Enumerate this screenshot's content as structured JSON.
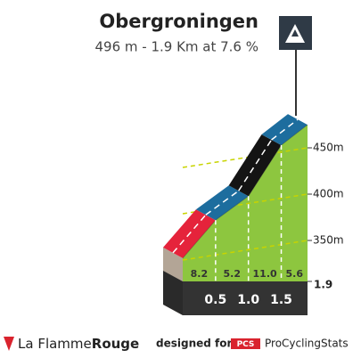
{
  "chart_data": {
    "type": "profile",
    "title": "Obergroningen",
    "subtitle": "496 m - 1.9 Km at 7.6 %",
    "xlim": [
      0,
      1.9
    ],
    "xticks": [
      0.5,
      {
        "value": 1,
        "label": "1.0"
      },
      1.5,
      1.9
    ],
    "ylim": [
      350,
      500
    ],
    "yticks": [
      {
        "value": 350,
        "label": "350m"
      },
      {
        "value": 400,
        "label": "400m"
      },
      {
        "value": 450,
        "label": "450m"
      }
    ],
    "profile": {
      "x": [
        0,
        0.5,
        1,
        1.5,
        1.9
      ],
      "values": [
        352,
        393,
        419,
        474,
        496
      ]
    },
    "segments": {
      "values": [
        8.2,
        5.2,
        11.0,
        5.6
      ],
      "value_labels": [
        "8.2",
        "5.2",
        "11.0",
        "5.6"
      ],
      "colors": [
        "#e5233b",
        "#1d6d9e",
        "#141414",
        "#1d6d9e"
      ]
    },
    "grid_color": "#c8d400",
    "face_color": "#8dc63f"
  },
  "footer": {
    "brand": "La Flamme",
    "brand_bold": "Rouge",
    "designed": "designed for",
    "pcs": "PCS",
    "site": "ProCyclingStats"
  }
}
